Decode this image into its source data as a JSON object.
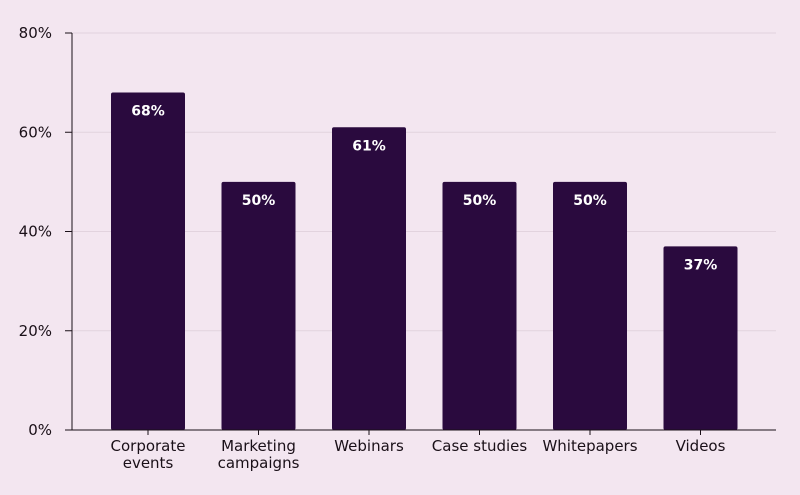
{
  "chart_data": {
    "type": "bar",
    "categories": [
      [
        "Corporate",
        "events"
      ],
      [
        "Marketing",
        "campaigns"
      ],
      [
        "Webinars"
      ],
      [
        "Case studies"
      ],
      [
        "Whitepapers"
      ],
      [
        "Videos"
      ]
    ],
    "values": [
      68,
      50,
      61,
      50,
      50,
      37
    ],
    "data_labels": [
      "68%",
      "50%",
      "61%",
      "50%",
      "50%",
      "37%"
    ],
    "y_ticks": [
      0,
      20,
      40,
      60,
      80
    ],
    "y_tick_labels": [
      "0%",
      "20%",
      "40%",
      "60%",
      "80%"
    ],
    "ylim": [
      0,
      80
    ],
    "title": "",
    "xlabel": "",
    "ylabel": "",
    "grid": true,
    "legend": "none"
  },
  "colors": {
    "background": "#f3e6f0",
    "bar": "#2a0a3e",
    "grid": "#e2d3de",
    "axis": "#1a1018",
    "data_label": "#ffffff"
  }
}
